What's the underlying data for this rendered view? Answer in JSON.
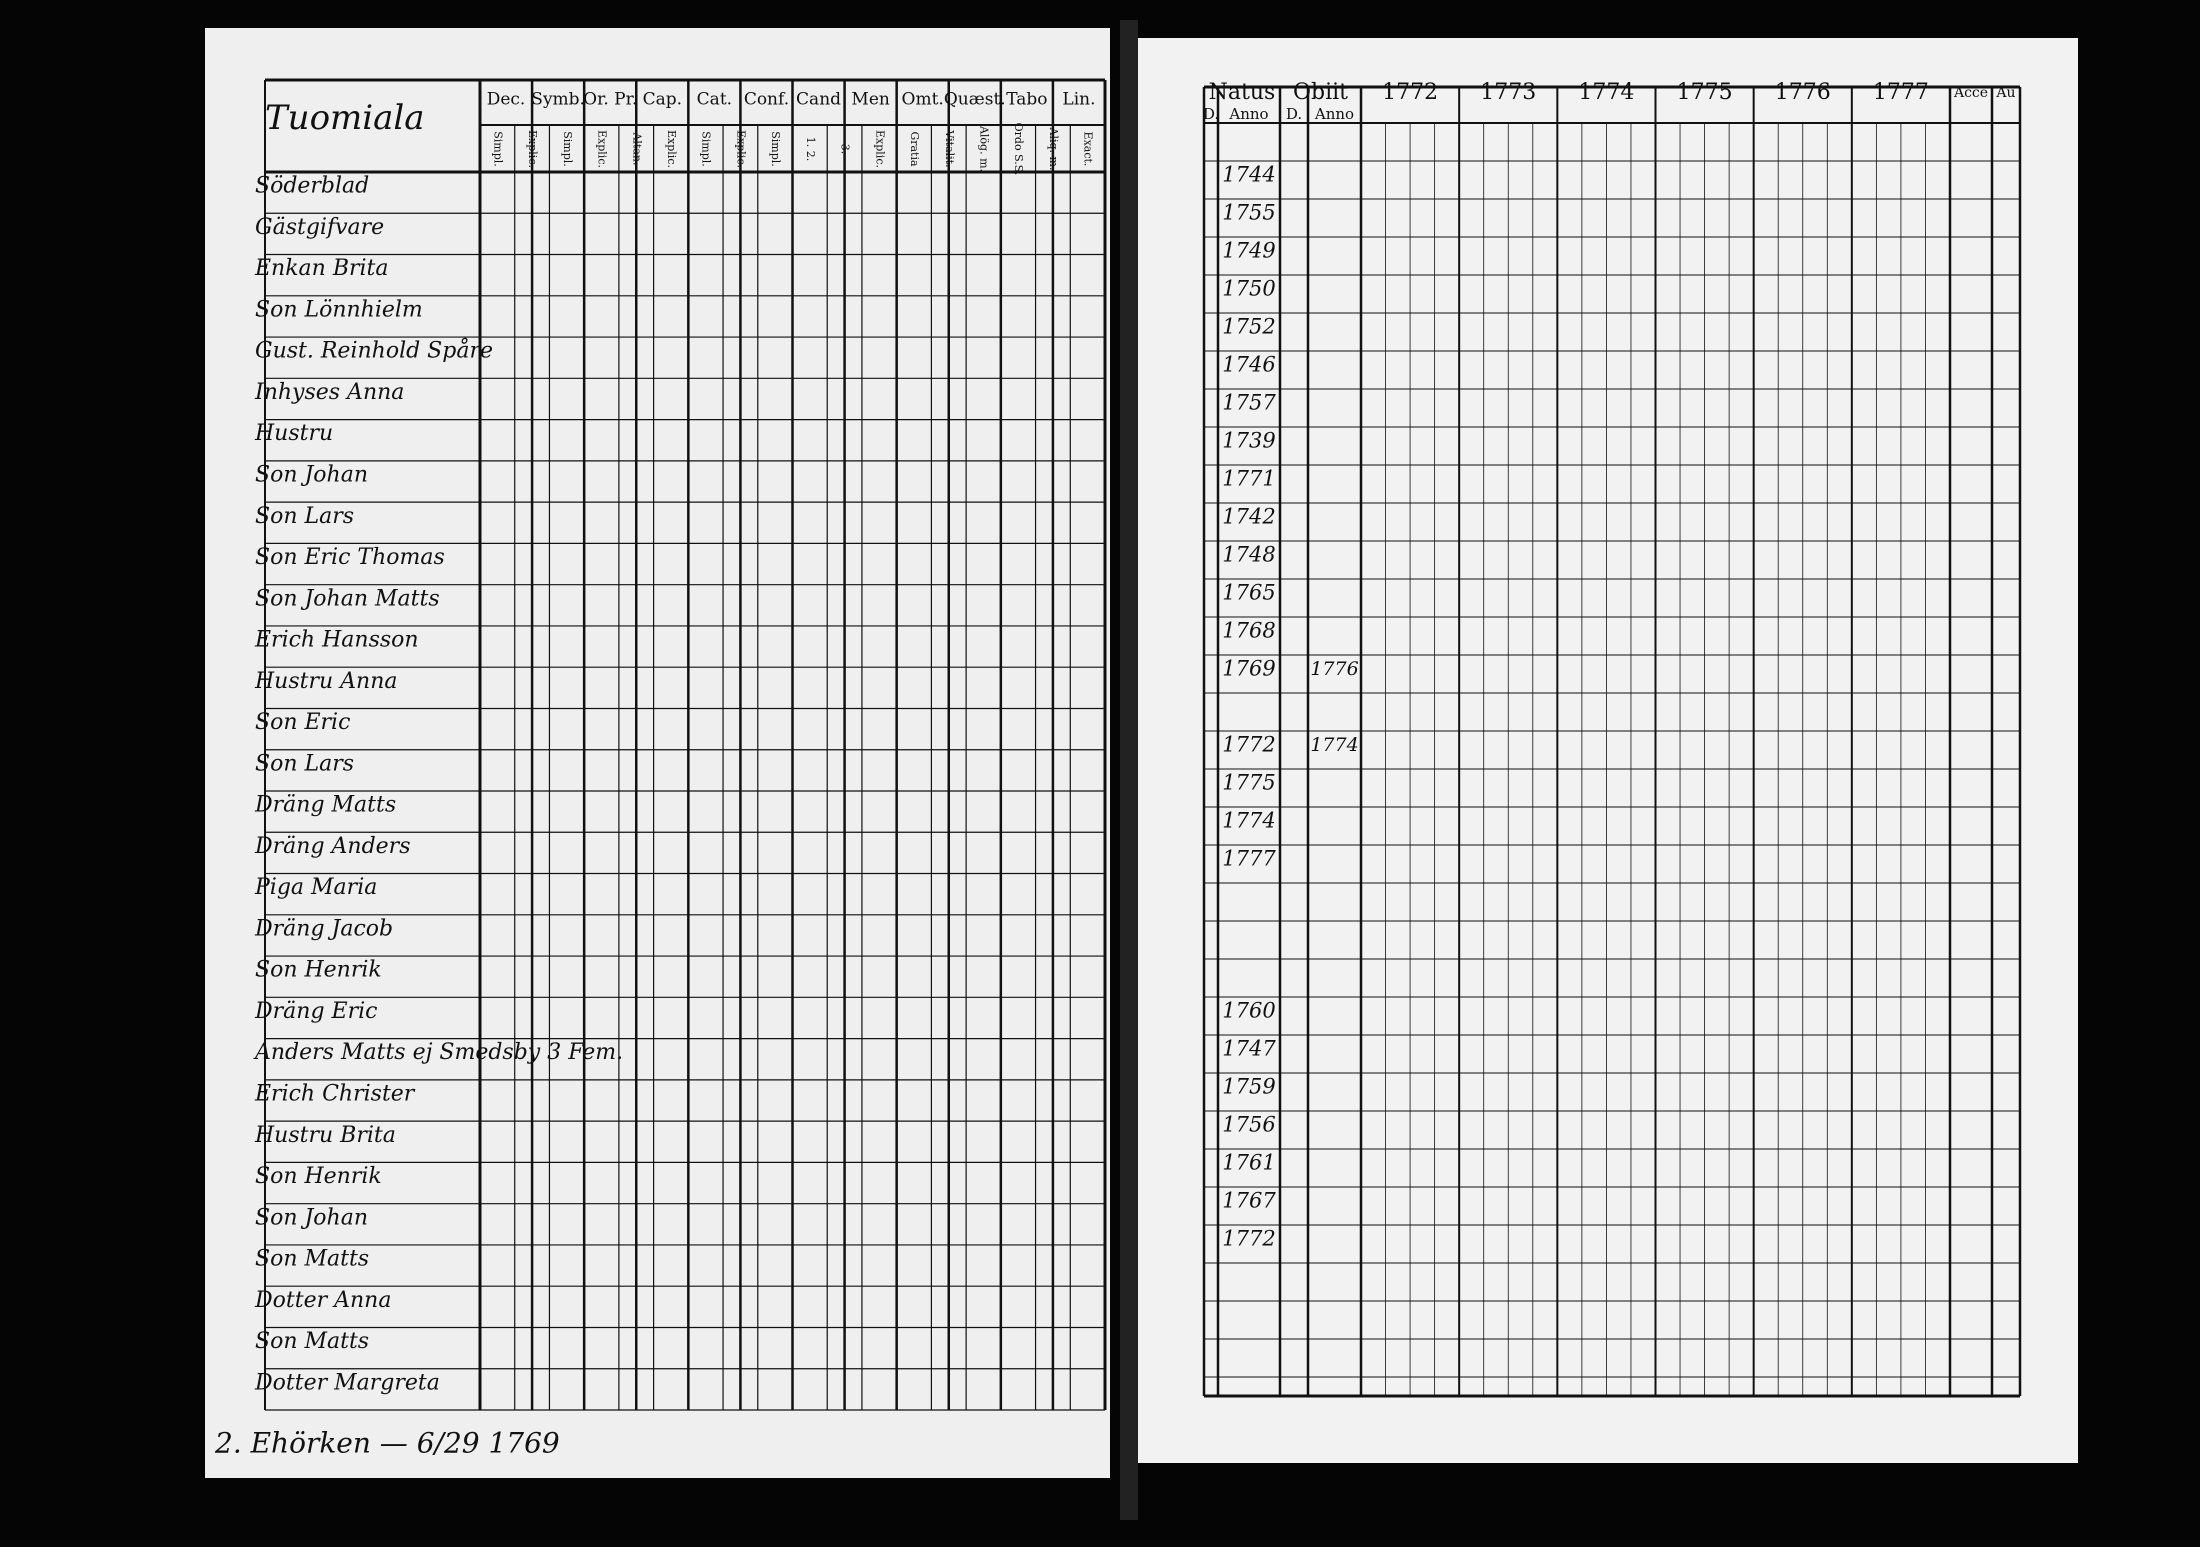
{
  "left_page": {
    "headers": [
      "Dec.",
      "Symb.",
      "Or. Pr.",
      "Cap.",
      "Cat.",
      "Conf.",
      "Cand",
      "Men",
      "Omt.",
      "Quæst.",
      "Tabo",
      "Lin."
    ],
    "subheaders": [
      "Simpl.",
      "Explic.",
      "Simpl.",
      "Explic.",
      "Altan.",
      "Explic.",
      "Simpl.",
      "Explic.",
      "Simpl.",
      "1. 2.",
      "3.",
      "Explic.",
      "Gratia",
      "Vitalit.",
      "Alög. m.",
      "Ordo S.S.",
      "Aliq. m.",
      "Exact."
    ],
    "title": "Tuomiala",
    "names": [
      "Söderblad",
      "Gästgifvare",
      "Enkan Brita",
      "Son Lönnhielm",
      "Gust. Reinhold Spåre",
      "Inhyses Anna",
      "Hustru",
      "Son Johan",
      "Son Lars",
      "Son Eric Thomas",
      "Son Johan Matts",
      "Erich Hansson",
      "Hustru Anna",
      "Son Eric",
      "Son Lars",
      "Dräng Matts",
      "Dräng Anders",
      "Piga Maria",
      "Dräng Jacob",
      "Son Henrik",
      "Dräng Eric",
      "Anders Matts ej Smedsby 3 Fem.",
      "Erich Christer",
      "Hustru Brita",
      "Son Henrik",
      "Son Johan",
      "Son Matts",
      "Dotter Anna",
      "Son Matts",
      "Dotter Margreta"
    ],
    "footer": "2. Ehörken — 6/29 1769"
  },
  "right_page": {
    "headers": [
      "Natus",
      "Obiit",
      "1772",
      "1773",
      "1774",
      "1775",
      "1776",
      "1777",
      "Acce",
      "Au"
    ],
    "subheaders": [
      "D.",
      "Anno",
      "D.",
      "Anno"
    ],
    "rows": [
      {
        "anno": "1744"
      },
      {
        "anno": "1755"
      },
      {
        "anno": "1749"
      },
      {
        "anno": "1750"
      },
      {
        "anno": "1752"
      },
      {
        "anno": "1746"
      },
      {
        "anno": "1757"
      },
      {
        "anno": "1739"
      },
      {
        "anno": "1771"
      },
      {
        "anno": "1742"
      },
      {
        "anno": "1748"
      },
      {
        "anno": "1765"
      },
      {
        "anno": "1768"
      },
      {
        "anno": "1769",
        "obiit": "1776"
      },
      {
        "anno": "1772",
        "obiit": "1774"
      },
      {
        "anno": "1775"
      },
      {
        "anno": "1774"
      },
      {
        "anno": "1777"
      },
      {
        "anno": "1760"
      },
      {
        "anno": "1747"
      },
      {
        "anno": "1759"
      },
      {
        "anno": "1756"
      },
      {
        "anno": "1761"
      },
      {
        "anno": "1767"
      },
      {
        "anno": "1772"
      }
    ]
  }
}
